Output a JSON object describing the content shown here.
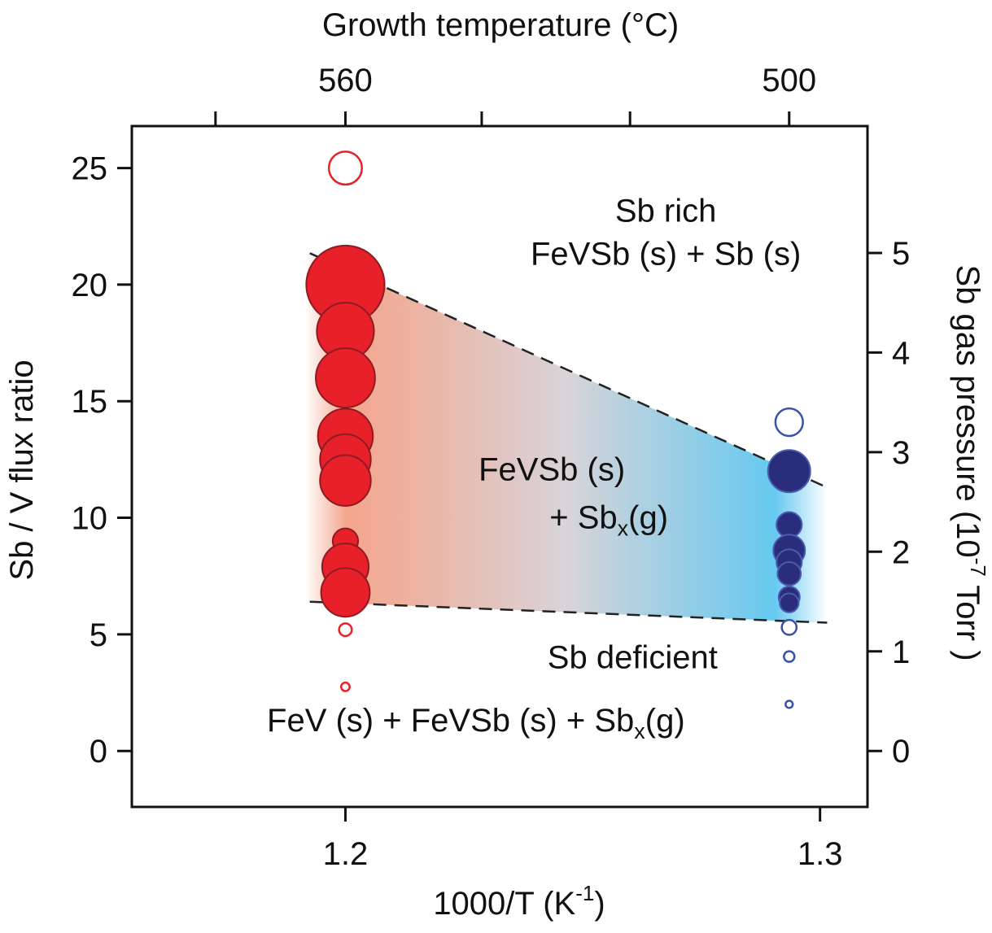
{
  "chart_data": {
    "type": "scatter",
    "title_top": "Growth temperature (°C)",
    "xlabel": {
      "main": "1000/T (K",
      "sup": "-1",
      "close": ")"
    },
    "ylabel": "Sb / V flux ratio",
    "ylabel_right": {
      "pre": "Sb gas pressure (10",
      "sup": "-7",
      "post": " Torr )"
    },
    "xlim": [
      1.155,
      1.31
    ],
    "ylim": [
      -2.4,
      26.8
    ],
    "y2lim": [
      -0.5617,
      6.2735
    ],
    "x_ticks": [
      1.2,
      1.3
    ],
    "x_tick_labels": [
      "1.2",
      "1.3"
    ],
    "x_minor_ticks": [
      1.2,
      1.3
    ],
    "top_ticks": [
      1.17263,
      1.2,
      1.22872,
      1.25997,
      1.2935
    ],
    "top_tick_labels": [
      {
        "x": 1.2,
        "label": "560"
      },
      {
        "x": 1.2935,
        "label": "500"
      }
    ],
    "y_ticks": [
      0,
      5,
      10,
      15,
      20,
      25
    ],
    "y_tick_labels": [
      "0",
      "5",
      "10",
      "15",
      "20",
      "25"
    ],
    "y2_ticks": [
      0,
      1,
      2,
      3,
      4,
      5
    ],
    "y2_tick_labels": [
      "0",
      "1",
      "2",
      "3",
      "4",
      "5"
    ],
    "colors": {
      "red": "#e8202a",
      "red_edge": "#8c1c22",
      "blue": "#2a2c7c",
      "blue_edge": "#4a5cb0",
      "open_red": "#e8202a",
      "open_blue": "#3a52a8",
      "gradient_red": "#f4a086",
      "gradient_blue": "#5ec6ef"
    },
    "series": [
      {
        "name": "560C filled",
        "marker": "filled",
        "color": "red",
        "points": [
          {
            "x": 1.2,
            "y": 20.0,
            "size": 1.85
          },
          {
            "x": 1.2,
            "y": 18.0,
            "size": 1.35
          },
          {
            "x": 1.2,
            "y": 16.0,
            "size": 1.4
          },
          {
            "x": 1.2,
            "y": 13.5,
            "size": 1.3
          },
          {
            "x": 1.2,
            "y": 12.5,
            "size": 1.2
          },
          {
            "x": 1.2,
            "y": 11.6,
            "size": 1.2
          },
          {
            "x": 1.2,
            "y": 9.0,
            "size": 0.6
          },
          {
            "x": 1.2,
            "y": 7.9,
            "size": 1.1
          },
          {
            "x": 1.2,
            "y": 6.8,
            "size": 1.15
          }
        ]
      },
      {
        "name": "560C open",
        "marker": "open",
        "color": "open_red",
        "points": [
          {
            "x": 1.2,
            "y": 25.0,
            "size": 0.78
          },
          {
            "x": 1.2,
            "y": 5.2,
            "size": 0.3
          },
          {
            "x": 1.2,
            "y": 2.75,
            "size": 0.2
          }
        ]
      },
      {
        "name": "500C filled",
        "marker": "filled",
        "color": "blue",
        "points": [
          {
            "x": 1.2935,
            "y": 12.0,
            "size": 1.0
          },
          {
            "x": 1.2935,
            "y": 9.7,
            "size": 0.6
          },
          {
            "x": 1.2935,
            "y": 8.6,
            "size": 0.75
          },
          {
            "x": 1.2935,
            "y": 8.1,
            "size": 0.6
          },
          {
            "x": 1.2935,
            "y": 7.6,
            "size": 0.55
          },
          {
            "x": 1.2935,
            "y": 6.6,
            "size": 0.5
          },
          {
            "x": 1.2935,
            "y": 6.35,
            "size": 0.45
          }
        ]
      },
      {
        "name": "500C open",
        "marker": "open",
        "color": "open_blue",
        "points": [
          {
            "x": 1.2935,
            "y": 14.1,
            "size": 0.65
          },
          {
            "x": 1.2935,
            "y": 5.3,
            "size": 0.35
          },
          {
            "x": 1.2935,
            "y": 4.05,
            "size": 0.25
          },
          {
            "x": 1.2935,
            "y": 2.0,
            "size": 0.17
          }
        ]
      }
    ],
    "boundary_lines": [
      {
        "name": "upper boundary",
        "x": [
          1.1925,
          1.3015
        ],
        "y": [
          21.35,
          11.3
        ]
      },
      {
        "name": "lower boundary",
        "x": [
          1.1925,
          1.3015
        ],
        "y": [
          6.4,
          5.5
        ]
      }
    ],
    "region_band": {
      "x_left": 1.1915,
      "x_right": 1.3015,
      "x_plateau_left": 1.1965,
      "x_plateau_right": 1.297
    },
    "annotations": [
      {
        "name": "sb-rich-title",
        "x": 1.2675,
        "y": 22.7,
        "text": "Sb rich"
      },
      {
        "name": "sb-rich-phases",
        "x": 1.2675,
        "y": 20.85,
        "text": "FeVSb (s) + Sb (s)"
      },
      {
        "name": "mid-phase-1",
        "x": 1.2435,
        "y": 11.6,
        "text": "FeVSb (s)"
      },
      {
        "name": "mid-phase-2",
        "x": 1.2555,
        "y": 9.55,
        "text": "+ Sb",
        "sub": "x",
        "tail": "(g)"
      },
      {
        "name": "sb-deficient-title",
        "x": 1.2605,
        "y": 3.55,
        "text": "Sb deficient"
      },
      {
        "name": "sb-deficient-phases",
        "x": 1.2275,
        "y": 0.85,
        "text": "FeV (s) + FeVSb (s) + Sb",
        "sub": "x",
        "tail": "(g)"
      }
    ]
  }
}
